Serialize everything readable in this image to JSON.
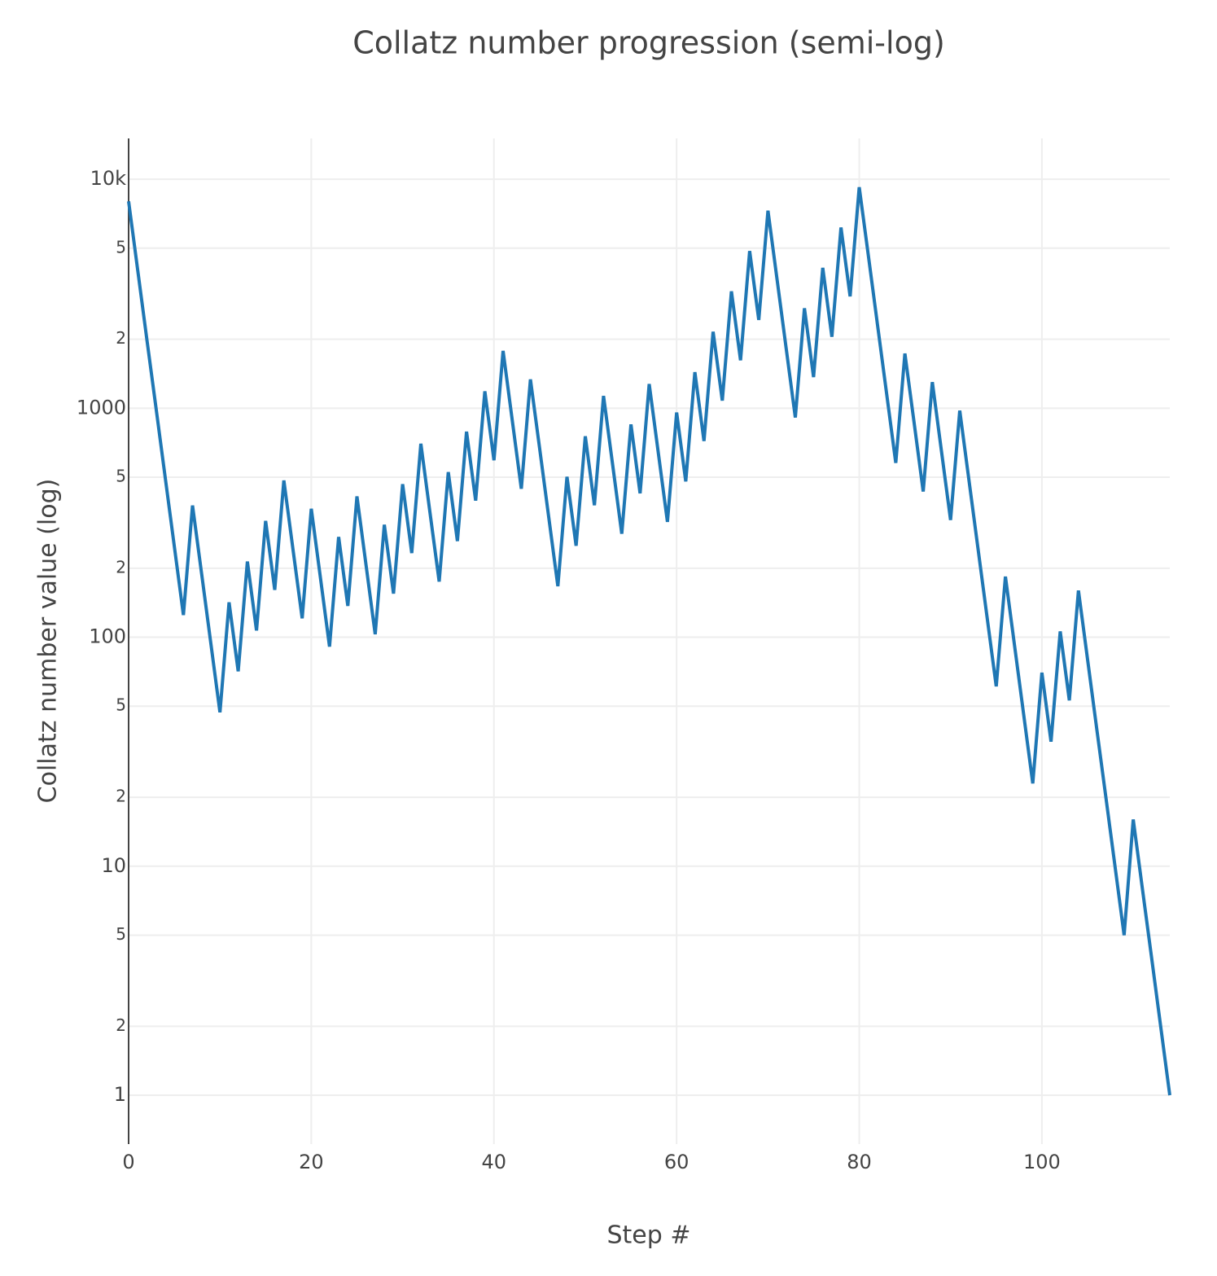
{
  "chart_data": {
    "type": "line",
    "title": "Collatz number progression (semi-log)",
    "x_label": "Step #",
    "y_label": "Collatz number value (log)",
    "log_y": true,
    "grid": true,
    "x": [
      0,
      1,
      2,
      3,
      4,
      5,
      6,
      7,
      8,
      9,
      10,
      11,
      12,
      13,
      14,
      15,
      16,
      17,
      18,
      19,
      20,
      21,
      22,
      23,
      24,
      25,
      26,
      27,
      28,
      29,
      30,
      31,
      32,
      33,
      34,
      35,
      36,
      37,
      38,
      39,
      40,
      41,
      42,
      43,
      44,
      45,
      46,
      47,
      48,
      49,
      50,
      51,
      52,
      53,
      54,
      55,
      56,
      57,
      58,
      59,
      60,
      61,
      62,
      63,
      64,
      65,
      66,
      67,
      68,
      69,
      70,
      71,
      72,
      73,
      74,
      75,
      76,
      77,
      78,
      79,
      80,
      81,
      82,
      83,
      84,
      85,
      86,
      87,
      88,
      89,
      90,
      91,
      92,
      93,
      94,
      95,
      96,
      97,
      98,
      99,
      100,
      101,
      102,
      103,
      104,
      105,
      106,
      107,
      108,
      109,
      110,
      111,
      112,
      113,
      114
    ],
    "series": [
      {
        "color": "#1f77b4",
        "values": [
          8000,
          4000,
          2000,
          1000,
          500,
          250,
          125,
          376,
          188,
          94,
          47,
          142,
          71,
          214,
          107,
          322,
          161,
          484,
          242,
          121,
          364,
          182,
          91,
          274,
          137,
          412,
          206,
          103,
          310,
          155,
          466,
          233,
          700,
          350,
          175,
          526,
          263,
          790,
          395,
          1186,
          593,
          1780,
          890,
          445,
          1336,
          668,
          334,
          167,
          502,
          251,
          754,
          377,
          1132,
          566,
          283,
          850,
          425,
          1276,
          638,
          319,
          958,
          479,
          1438,
          719,
          2158,
          1079,
          3238,
          1619,
          4858,
          2429,
          7288,
          3644,
          1822,
          911,
          2734,
          1367,
          4102,
          2051,
          6154,
          3077,
          9232,
          4616,
          2308,
          1154,
          577,
          1732,
          866,
          433,
          1300,
          650,
          325,
          976,
          488,
          244,
          122,
          61,
          184,
          92,
          46,
          23,
          70,
          35,
          106,
          53,
          160,
          80,
          40,
          20,
          10,
          5,
          16,
          8,
          4,
          2,
          1
        ]
      }
    ],
    "xlim": [
      0,
      114
    ],
    "xticks": [
      0,
      20,
      40,
      60,
      80,
      100
    ],
    "ylim": [
      0.612,
      15070
    ],
    "yticks": [
      1,
      2,
      5,
      10,
      {
        "value": 20,
        "label": "2"
      },
      {
        "value": 50,
        "label": "5"
      },
      100,
      {
        "value": 200,
        "label": "2"
      },
      {
        "value": 500,
        "label": "5"
      },
      1000,
      {
        "value": 2000,
        "label": "2"
      },
      {
        "value": 5000,
        "label": "5"
      },
      {
        "value": 10000,
        "label": "10k"
      }
    ]
  }
}
